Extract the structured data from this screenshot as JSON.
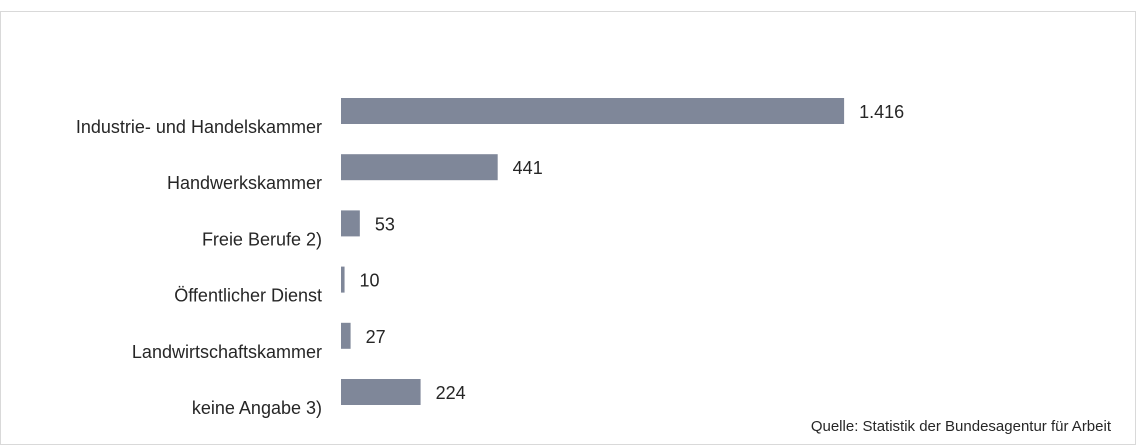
{
  "chart_data": {
    "type": "bar",
    "orientation": "horizontal",
    "categories": [
      "Industrie- und Handelskammer",
      "Handwerkskammer",
      "Freie Berufe 2)",
      "Öffentlicher Dienst",
      "Landwirtschaftskammer",
      "keine Angabe 3)"
    ],
    "values": [
      1416,
      441,
      53,
      10,
      27,
      224
    ],
    "value_labels": [
      "1.416",
      "441",
      "53",
      "10",
      "27",
      "224"
    ],
    "title": "",
    "xlabel": "",
    "ylabel": "",
    "bar_color": "#7f8799",
    "grid": false,
    "legend": "none"
  },
  "source": "Quelle: Statistik der Bundesagentur für Arbeit"
}
